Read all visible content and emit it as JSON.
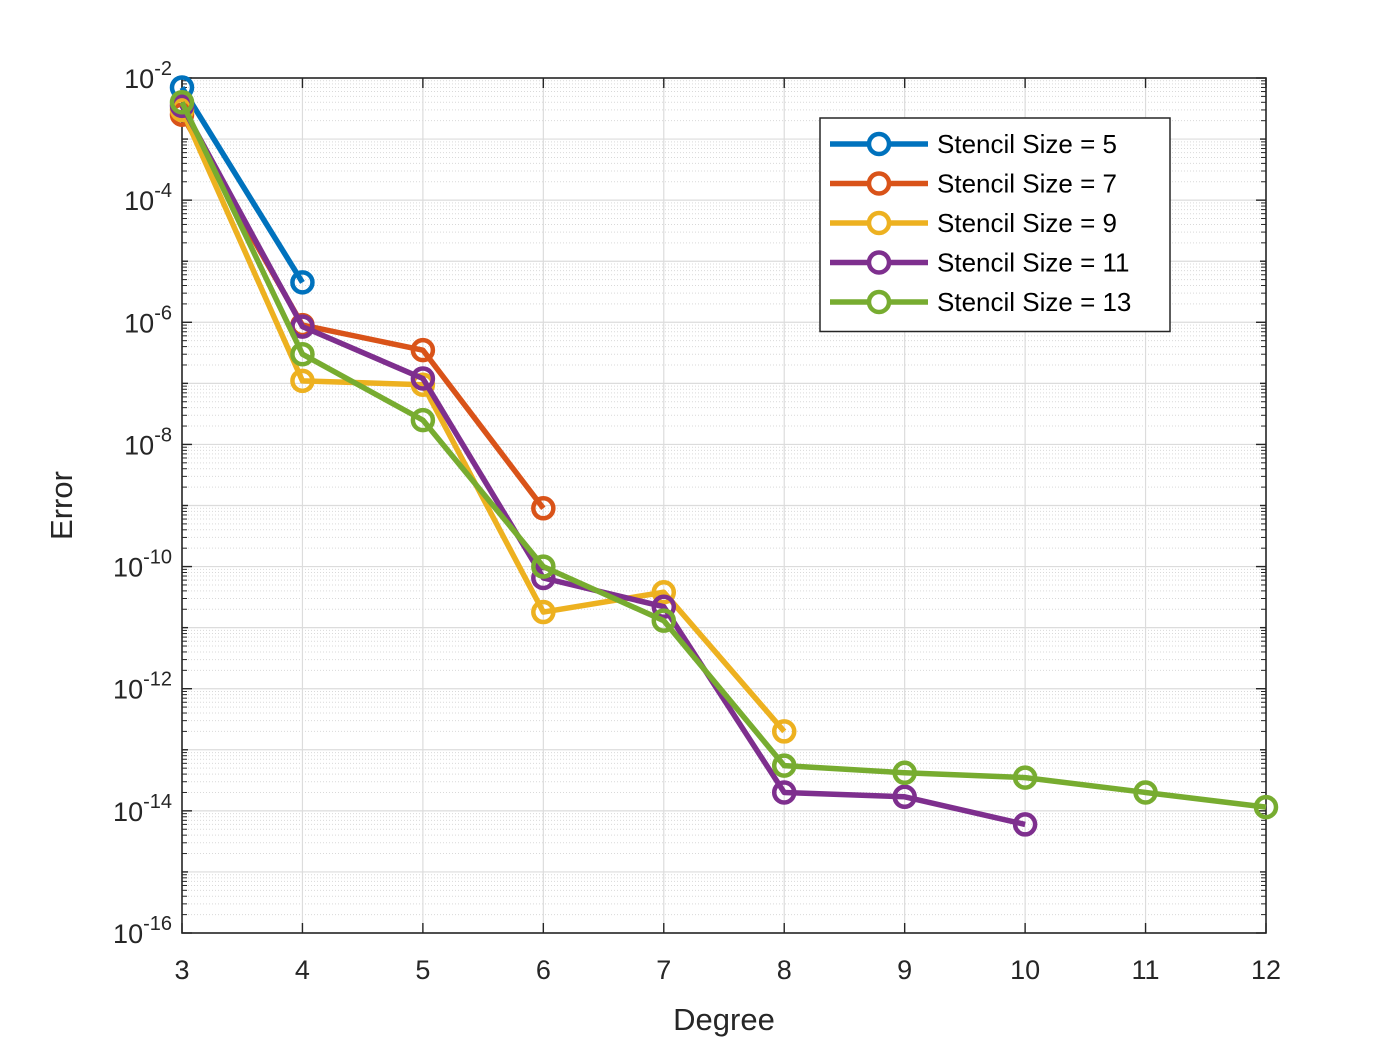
{
  "chart_data": {
    "type": "line",
    "title": "",
    "xlabel": "Degree",
    "ylabel": "Error",
    "yscale": "log",
    "xlim": [
      3,
      12
    ],
    "ylim_exponent": [
      -16,
      -2
    ],
    "x_ticks": [
      "3",
      "4",
      "5",
      "6",
      "7",
      "8",
      "9",
      "10",
      "11",
      "12"
    ],
    "y_ticks": [
      {
        "base": "10",
        "exp": "-2"
      },
      {
        "base": "10",
        "exp": "-4"
      },
      {
        "base": "10",
        "exp": "-6"
      },
      {
        "base": "10",
        "exp": "-8"
      },
      {
        "base": "10",
        "exp": "-10"
      },
      {
        "base": "10",
        "exp": "-12"
      },
      {
        "base": "10",
        "exp": "-14"
      },
      {
        "base": "10",
        "exp": "-16"
      }
    ],
    "grid": true,
    "legend_position": "top-right",
    "series": [
      {
        "name": "Stencil Size = 5",
        "color": "#0072BD",
        "x": [
          3,
          4
        ],
        "y": [
          0.007,
          4.5e-06
        ]
      },
      {
        "name": "Stencil Size = 7",
        "color": "#D95319",
        "x": [
          3,
          4,
          5,
          6
        ],
        "y": [
          0.0025,
          9e-07,
          3.5e-07,
          9e-10
        ]
      },
      {
        "name": "Stencil Size = 9",
        "color": "#EDB120",
        "x": [
          3,
          4,
          5,
          6,
          7,
          8
        ],
        "y": [
          0.003,
          1.1e-07,
          9.5e-08,
          1.8e-11,
          3.8e-11,
          2e-13
        ]
      },
      {
        "name": "Stencil Size = 11",
        "color": "#7E2F8E",
        "x": [
          3,
          4,
          5,
          6,
          7,
          8,
          9,
          10
        ],
        "y": [
          0.0035,
          8.5e-07,
          1.2e-07,
          6.5e-11,
          2.2e-11,
          2e-14,
          1.7e-14,
          6e-15
        ]
      },
      {
        "name": "Stencil Size = 13",
        "color": "#77AC30",
        "x": [
          3,
          4,
          5,
          6,
          7,
          8,
          9,
          10,
          11,
          12
        ],
        "y": [
          0.004,
          3e-07,
          2.5e-08,
          1e-10,
          1.3e-11,
          5.5e-14,
          4.2e-14,
          3.5e-14,
          2e-14,
          1.15e-14
        ]
      }
    ]
  }
}
